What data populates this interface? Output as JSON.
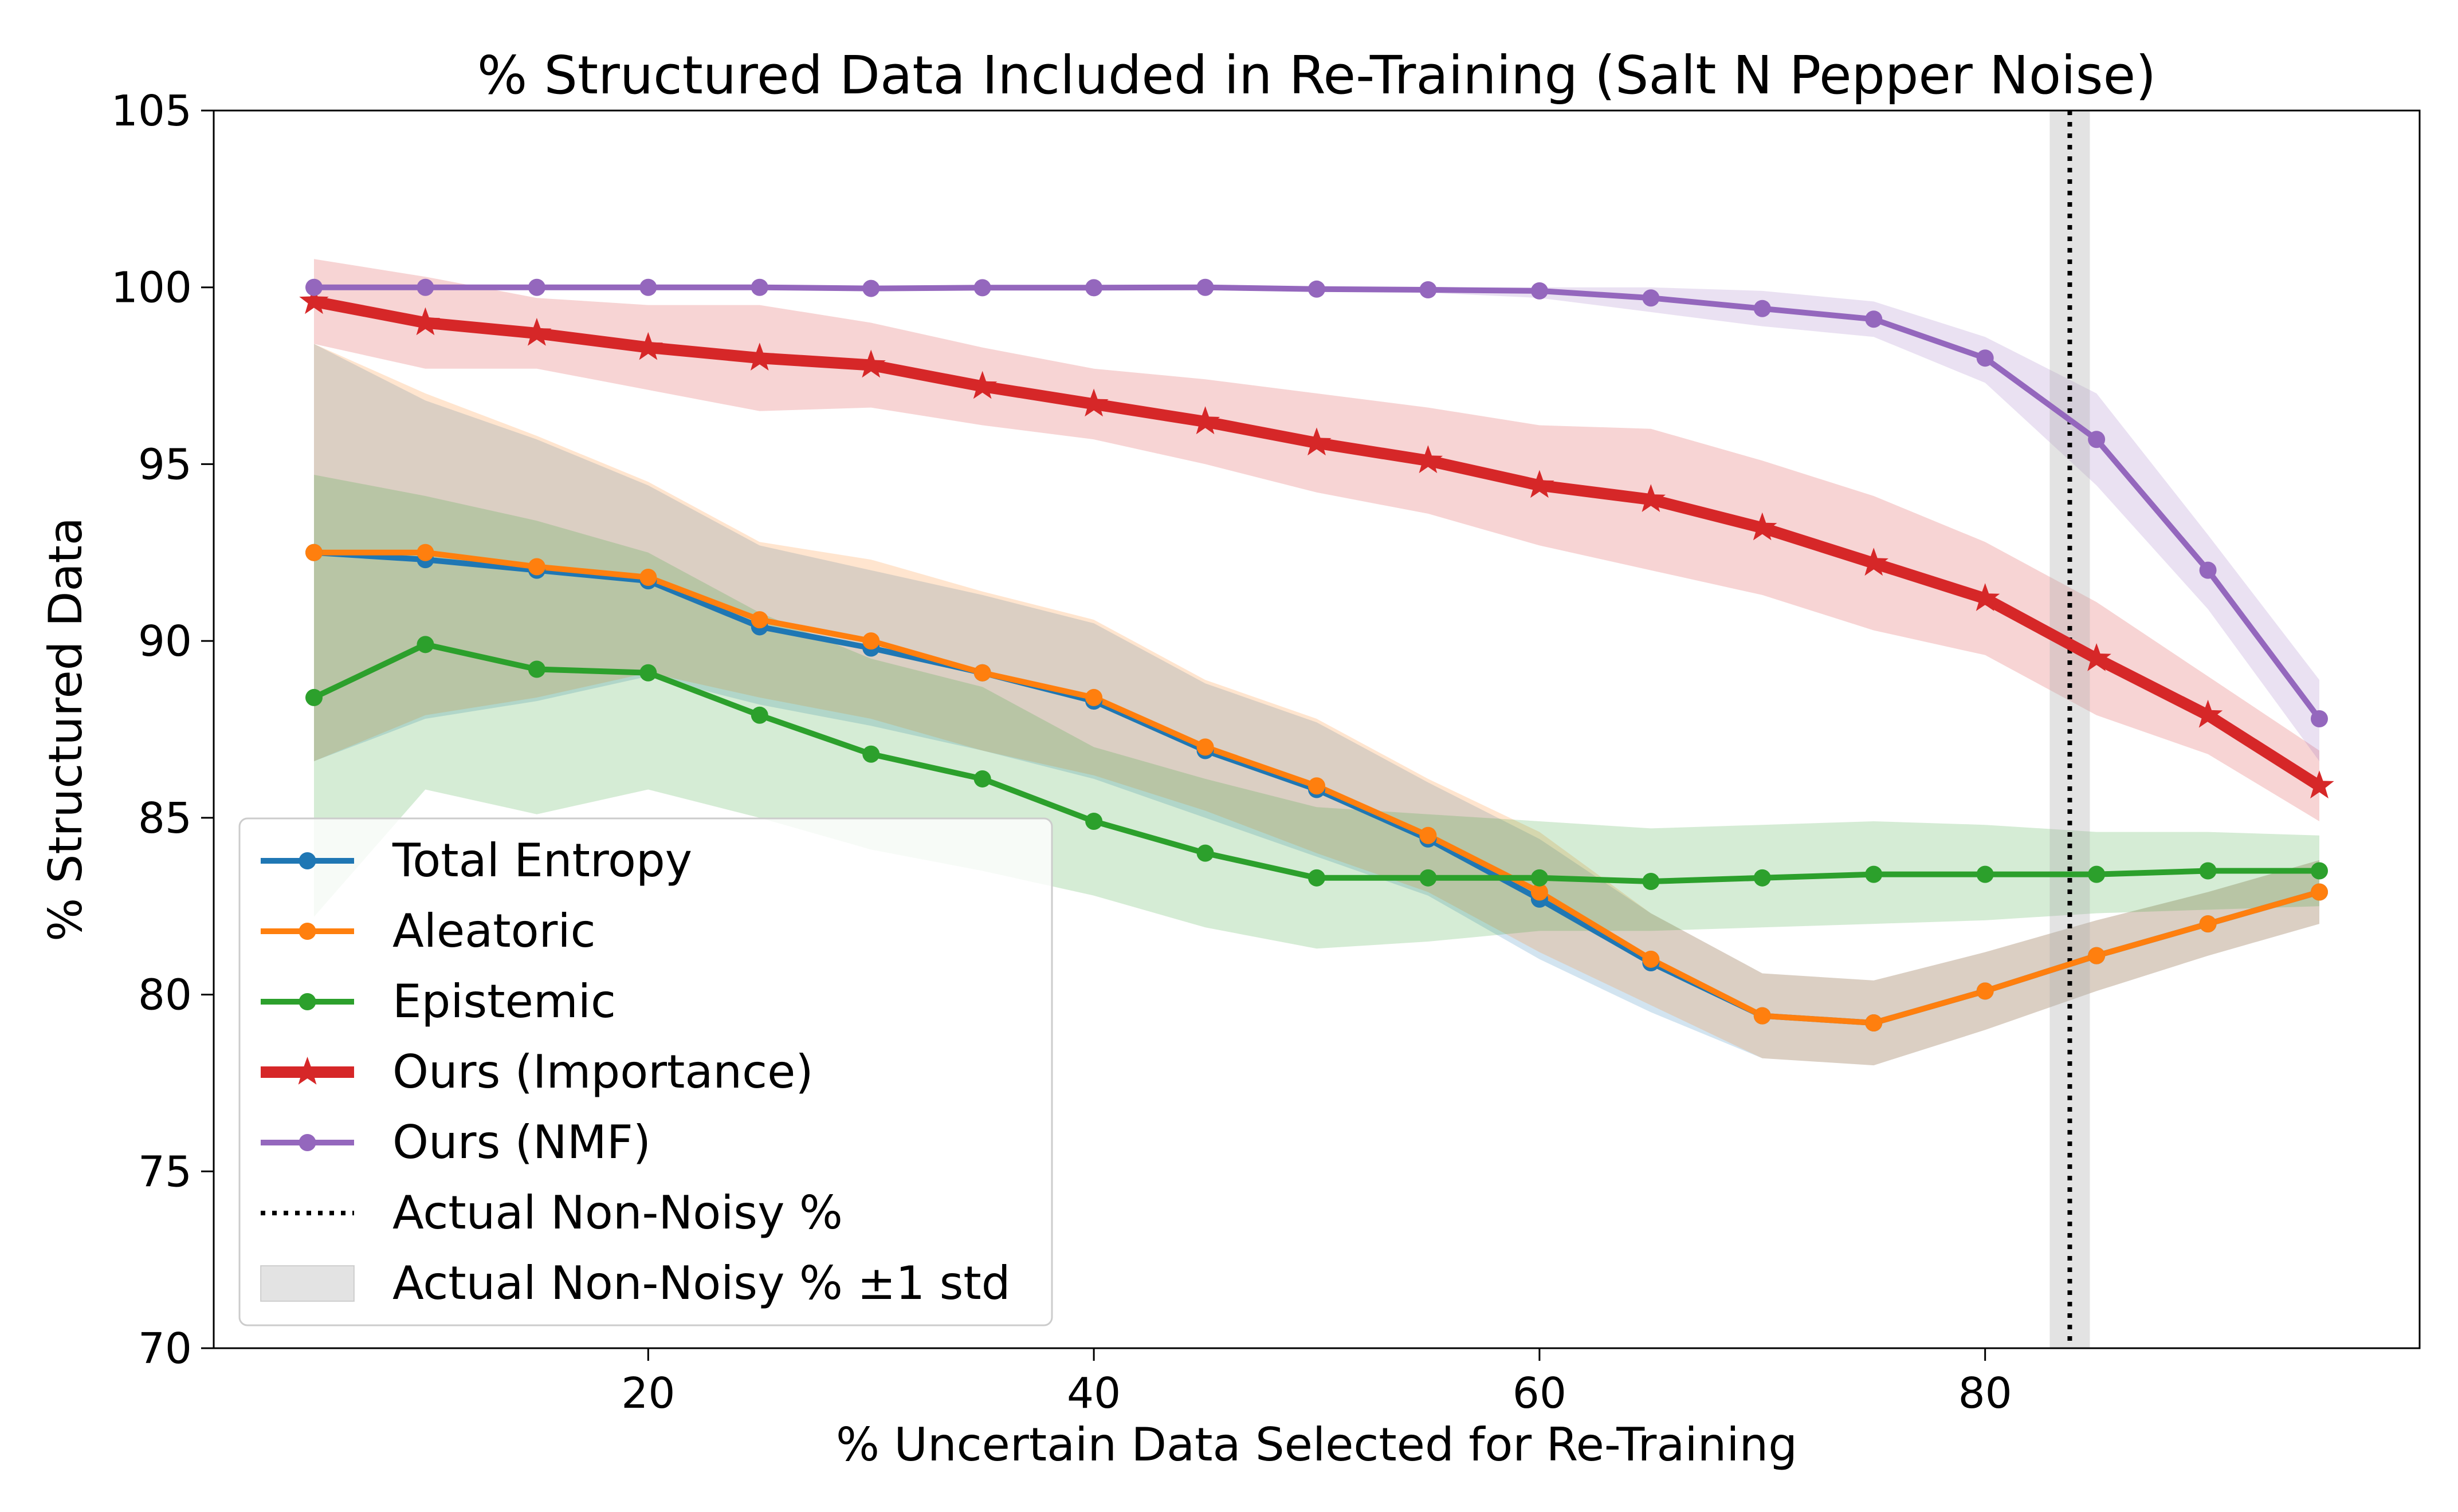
{
  "chart_data": {
    "type": "line",
    "title": "% Structured Data Included in Re-Training (Salt N Pepper Noise)",
    "xlabel": "% Uncertain Data Selected for Re-Training",
    "ylabel": "% Structured Data",
    "xlim": [
      0.5,
      99.5
    ],
    "ylim": [
      70,
      105
    ],
    "xticks": [
      20,
      40,
      60,
      80
    ],
    "yticks": [
      70,
      75,
      80,
      85,
      90,
      95,
      100,
      105
    ],
    "grid": false,
    "legend_position": "lower-left",
    "x": [
      5,
      10,
      15,
      20,
      25,
      30,
      35,
      40,
      45,
      50,
      55,
      60,
      65,
      70,
      75,
      80,
      85,
      90,
      95
    ],
    "series": [
      {
        "name": "Total Entropy",
        "color": "#1f77b4",
        "marker": "circle",
        "values": [
          92.5,
          92.3,
          92.0,
          91.7,
          90.4,
          89.8,
          89.1,
          88.3,
          86.9,
          85.8,
          84.4,
          82.7,
          80.9,
          79.4,
          79.2,
          80.1,
          81.1,
          82.0,
          82.9
        ],
        "band_lower": [
          86.6,
          87.8,
          88.3,
          89.0,
          88.2,
          87.6,
          86.9,
          86.1,
          85.0,
          83.9,
          82.8,
          81.0,
          79.5,
          78.2,
          78.0,
          79.0,
          80.1,
          81.1,
          82.0
        ],
        "band_upper": [
          98.4,
          96.8,
          95.7,
          94.4,
          92.7,
          92.0,
          91.3,
          90.5,
          88.8,
          87.7,
          86.0,
          84.4,
          82.3,
          80.6,
          80.4,
          81.2,
          82.1,
          82.9,
          83.8
        ]
      },
      {
        "name": "Aleatoric",
        "color": "#ff7f0e",
        "marker": "circle",
        "values": [
          92.5,
          92.5,
          92.1,
          91.8,
          90.6,
          90.0,
          89.1,
          88.4,
          87.0,
          85.9,
          84.5,
          82.9,
          81.0,
          79.4,
          79.2,
          80.1,
          81.1,
          82.0,
          82.9
        ],
        "band_lower": [
          86.6,
          87.9,
          88.4,
          89.1,
          88.4,
          87.8,
          86.9,
          86.2,
          85.2,
          84.0,
          82.9,
          81.2,
          79.7,
          78.2,
          78.0,
          79.0,
          80.1,
          81.1,
          82.0
        ],
        "band_upper": [
          98.4,
          97.0,
          95.8,
          94.5,
          92.8,
          92.3,
          91.4,
          90.6,
          88.9,
          87.8,
          86.1,
          84.6,
          82.3,
          80.6,
          80.4,
          81.2,
          82.1,
          82.9,
          83.8
        ]
      },
      {
        "name": "Epistemic",
        "color": "#2ca02c",
        "marker": "circle",
        "values": [
          88.4,
          89.9,
          89.2,
          89.1,
          87.9,
          86.8,
          86.1,
          84.9,
          84.0,
          83.3,
          83.3,
          83.3,
          83.2,
          83.3,
          83.4,
          83.4,
          83.4,
          83.5,
          83.5
        ],
        "band_lower": [
          82.2,
          85.8,
          85.1,
          85.8,
          85.0,
          84.1,
          83.5,
          82.8,
          81.9,
          81.3,
          81.5,
          81.8,
          81.8,
          81.9,
          82.0,
          82.1,
          82.3,
          82.4,
          82.5
        ],
        "band_upper": [
          94.7,
          94.1,
          93.4,
          92.5,
          90.8,
          89.5,
          88.7,
          87.0,
          86.1,
          85.3,
          85.1,
          84.9,
          84.7,
          84.8,
          84.9,
          84.8,
          84.6,
          84.6,
          84.5
        ]
      },
      {
        "name": "Ours (Importance)",
        "color": "#d62728",
        "marker": "star",
        "values": [
          99.6,
          99.0,
          98.7,
          98.3,
          98.0,
          97.8,
          97.2,
          96.7,
          96.2,
          95.6,
          95.1,
          94.4,
          94.0,
          93.2,
          92.2,
          91.2,
          89.5,
          87.9,
          85.9
        ],
        "band_lower": [
          98.4,
          97.7,
          97.7,
          97.1,
          96.5,
          96.6,
          96.1,
          95.7,
          95.0,
          94.2,
          93.6,
          92.7,
          92.0,
          91.3,
          90.3,
          89.6,
          87.9,
          86.8,
          84.9
        ],
        "band_upper": [
          100.8,
          100.3,
          99.7,
          99.5,
          99.5,
          99.0,
          98.3,
          97.7,
          97.4,
          97.0,
          96.6,
          96.1,
          96.0,
          95.1,
          94.1,
          92.8,
          91.1,
          89.0,
          86.9
        ]
      },
      {
        "name": "Ours (NMF)",
        "color": "#9467bd",
        "marker": "circle",
        "values": [
          100.0,
          100.0,
          100.0,
          100.0,
          100.0,
          99.97,
          99.99,
          99.99,
          100.0,
          99.95,
          99.93,
          99.9,
          99.7,
          99.4,
          99.1,
          98.0,
          95.7,
          92.0,
          87.8
        ],
        "band_lower": [
          100.0,
          100.0,
          100.0,
          100.0,
          100.0,
          99.95,
          99.95,
          99.95,
          99.95,
          99.9,
          99.85,
          99.7,
          99.3,
          98.9,
          98.6,
          97.3,
          94.4,
          90.9,
          86.6
        ],
        "band_upper": [
          100.0,
          100.0,
          100.0,
          100.0,
          100.0,
          100.0,
          100.0,
          100.0,
          100.0,
          100.0,
          100.0,
          100.0,
          100.0,
          99.9,
          99.6,
          98.6,
          97.0,
          93.0,
          88.9
        ]
      }
    ],
    "vline": {
      "name": "Actual Non-Noisy %",
      "x": 83.8,
      "std_band": [
        82.9,
        84.7
      ],
      "std_label": "Actual Non-Noisy % ±1 std",
      "color": "#000000"
    },
    "legend": [
      "Total Entropy",
      "Aleatoric",
      "Epistemic",
      "Ours (Importance)",
      "Ours (NMF)",
      "Actual Non-Noisy %",
      "Actual Non-Noisy % ±1 std"
    ]
  }
}
